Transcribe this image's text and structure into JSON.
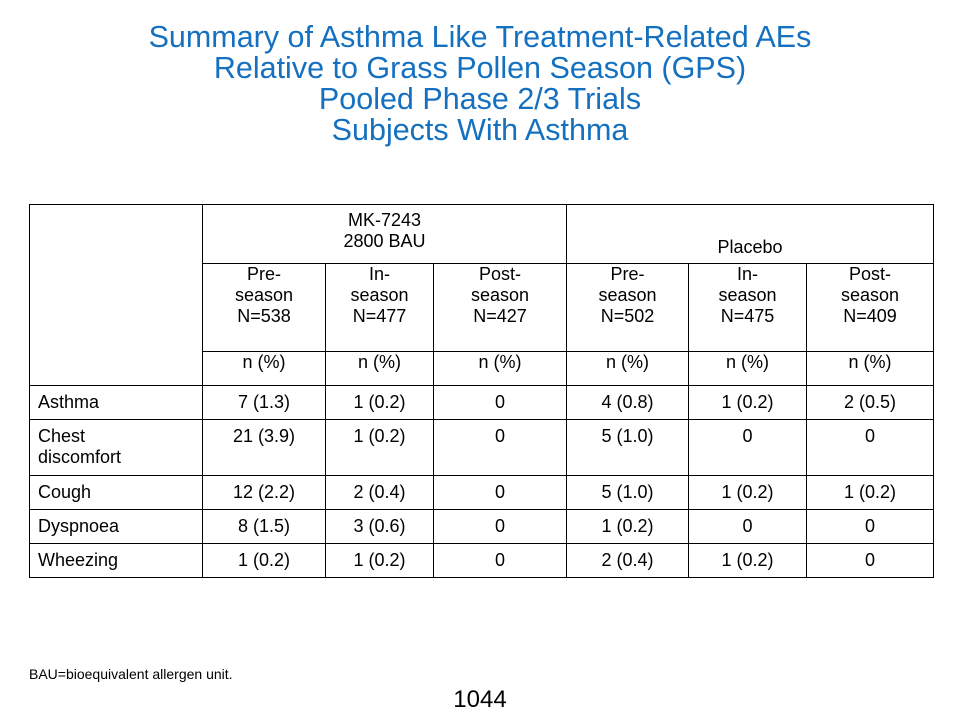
{
  "title_lines": [
    "Summary of Asthma Like Treatment-Related AEs",
    "Relative to Grass Pollen Season (GPS)",
    "Pooled Phase 2/3 Trials",
    "Subjects With Asthma"
  ],
  "table": {
    "groups": [
      {
        "line1": "MK-7243",
        "line2": "2800 BAU"
      },
      {
        "line1": "",
        "line2": "Placebo"
      }
    ],
    "periods": [
      {
        "l1": "Pre-",
        "l2": "season",
        "l3": "N=538"
      },
      {
        "l1": "In-",
        "l2": "season",
        "l3": "N=477"
      },
      {
        "l1": "Post-",
        "l2": "season",
        "l3": "N=427"
      },
      {
        "l1": "Pre-",
        "l2": "season",
        "l3": "N=502"
      },
      {
        "l1": "In-",
        "l2": "season",
        "l3": "N=475"
      },
      {
        "l1": "Post-",
        "l2": "season",
        "l3": "N=409"
      }
    ],
    "stat_label": "n (%)",
    "rows": [
      {
        "term": "Asthma",
        "values": [
          "7 (1.3)",
          "1 (0.2)",
          "0",
          "4 (0.8)",
          "1 (0.2)",
          "2 (0.5)"
        ]
      },
      {
        "term_line1": "Chest",
        "term_line2": "discomfort",
        "values": [
          "21 (3.9)",
          "1 (0.2)",
          "0",
          "5 (1.0)",
          "0",
          "0"
        ]
      },
      {
        "term": "Cough",
        "values": [
          "12 (2.2)",
          "2 (0.4)",
          "0",
          "5 (1.0)",
          "1 (0.2)",
          "1 (0.2)"
        ]
      },
      {
        "term": "Dyspnoea",
        "values": [
          "8 (1.5)",
          "3 (0.6)",
          "0",
          "1 (0.2)",
          "0",
          "0"
        ]
      },
      {
        "term": "Wheezing",
        "values": [
          "1 (0.2)",
          "1 (0.2)",
          "0",
          "2 (0.4)",
          "1 (0.2)",
          "0"
        ]
      }
    ]
  },
  "footnote": "BAU=bioequivalent allergen unit.",
  "page_number": "1044",
  "colors": {
    "title": "#1570c0",
    "header_rule": "#2e6db4"
  }
}
